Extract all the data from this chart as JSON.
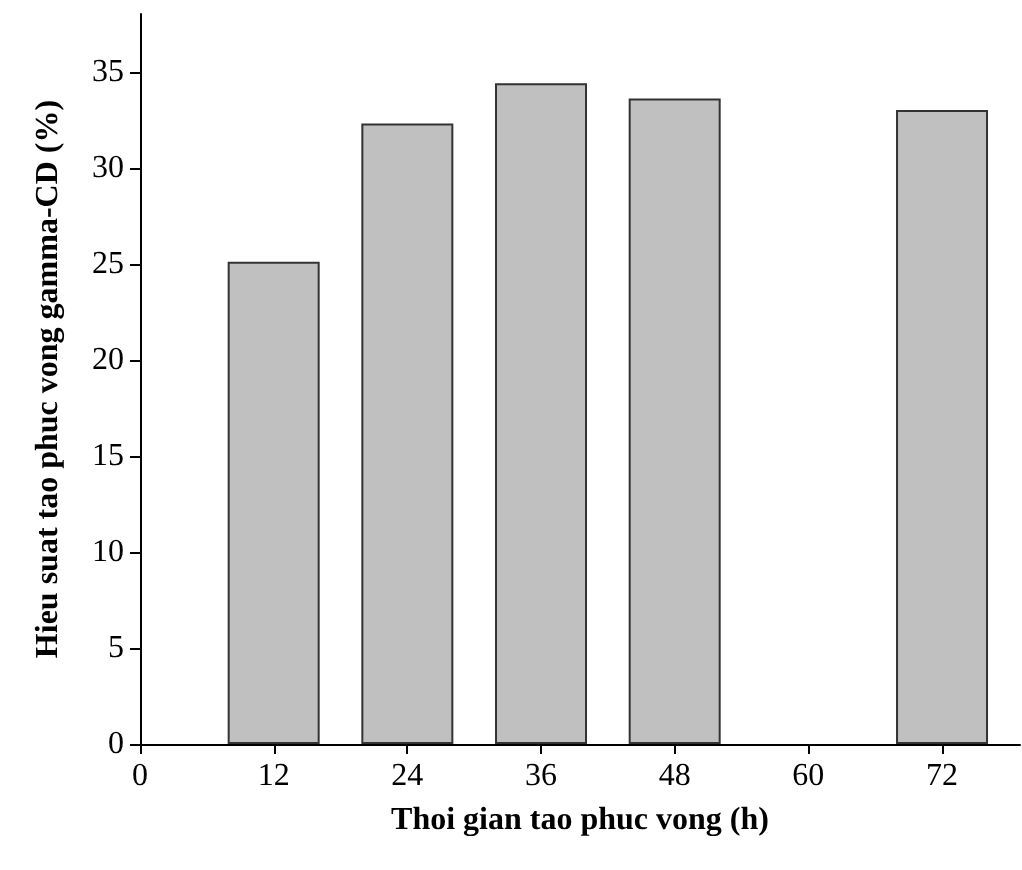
{
  "chart_data": {
    "type": "bar",
    "xlabel": "Thoi gian tao phuc vong (h)",
    "ylabel": "Hieu suat tao phuc vong gamma-CD (%)",
    "x": [
      12,
      24,
      36,
      48,
      72
    ],
    "values": [
      25.1,
      32.3,
      34.4,
      33.6,
      33.0
    ],
    "color": "#c0c0c0",
    "xlim": [
      0,
      79
    ],
    "xticks": [
      0,
      12,
      24,
      36,
      48,
      60,
      72
    ],
    "ylim": [
      0,
      38
    ],
    "yticks": [
      0,
      5,
      10,
      15,
      20,
      25,
      30,
      35
    ],
    "grid": false
  }
}
